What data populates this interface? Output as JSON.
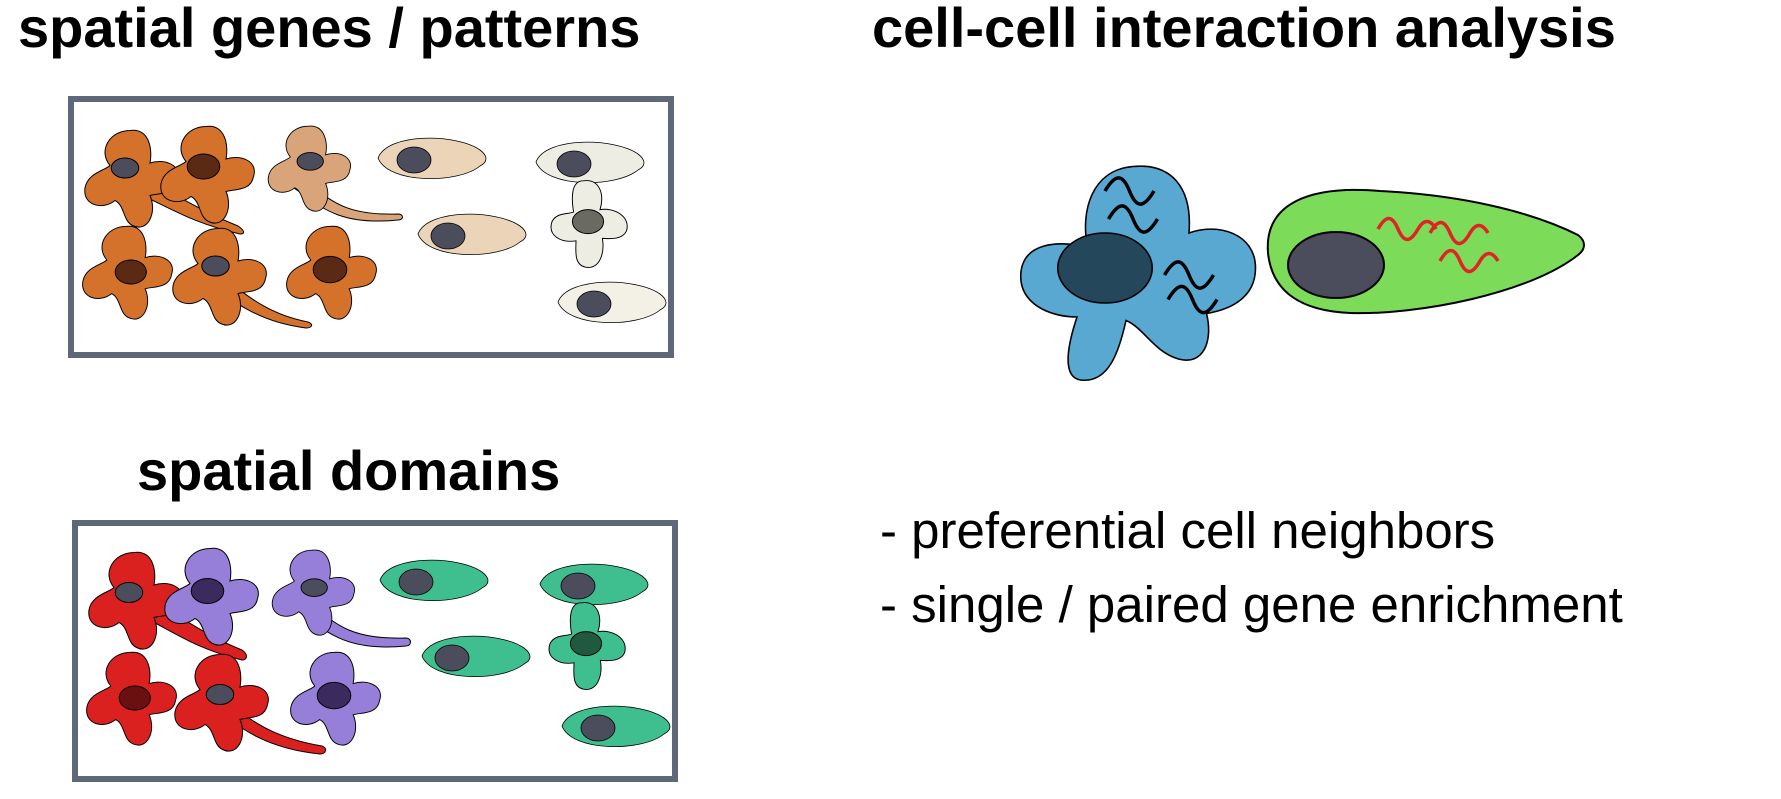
{
  "titles": {
    "spatial_genes": "spatial genes / patterns",
    "spatial_domains": "spatial domains",
    "cell_cell": "cell-cell interaction analysis"
  },
  "bullets": [
    "- preferential cell neighbors",
    "- single / paired gene enrichment"
  ],
  "colors": {
    "frame": "#5f6878",
    "orange": "#d4722c",
    "tan": "#d9a47a",
    "beige": "#ecd4b8",
    "cream": "#eeede3",
    "red": "#db2020",
    "purple": "#957fd9",
    "teal": "#3fbf90",
    "blue": "#58a8d1",
    "green": "#7cdc5a",
    "nucleus_gray": "#4b4d5c",
    "nucleus_dark": "#5a2a14"
  }
}
